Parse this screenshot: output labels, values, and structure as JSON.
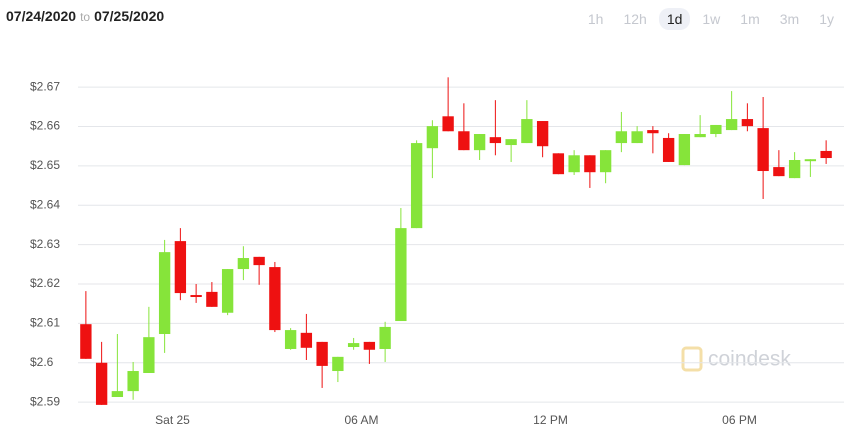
{
  "date_range": {
    "start": "07/24/2020",
    "separator": "to",
    "end": "07/25/2020"
  },
  "range_buttons": [
    "1h",
    "12h",
    "1d",
    "1w",
    "1m",
    "3m",
    "1y"
  ],
  "selected_range": "1d",
  "watermark": "coindesk",
  "chart_data": {
    "type": "candlestick",
    "categories": [
      null,
      null,
      null,
      null,
      null,
      null,
      "Sat 25",
      null,
      null,
      null,
      null,
      null,
      null,
      null,
      null,
      null,
      null,
      null,
      "06 AM",
      null,
      null,
      null,
      null,
      null,
      null,
      null,
      null,
      null,
      null,
      null,
      "12 PM",
      null,
      null,
      null,
      null,
      null,
      null,
      null,
      null,
      null,
      null,
      null,
      "06 PM",
      null,
      null,
      null,
      null,
      null
    ],
    "open": [
      2.6098,
      2.6,
      2.5913,
      2.5928,
      2.5974,
      2.6073,
      2.6309,
      2.6172,
      2.618,
      2.6127,
      2.6238,
      2.6269,
      2.6243,
      2.6035,
      2.6076,
      2.6053,
      2.5979,
      2.604,
      2.6053,
      2.6035,
      2.6106,
      2.6342,
      2.6545,
      2.6626,
      2.6588,
      2.654,
      2.6573,
      2.6553,
      2.6558,
      2.6614,
      2.6532,
      2.6484,
      2.6527,
      2.6484,
      2.6558,
      2.6558,
      2.6591,
      2.6571,
      2.6502,
      2.6573,
      2.6581,
      2.6591,
      2.6619,
      2.6596,
      2.6497,
      2.6469,
      2.6512,
      2.6538
    ],
    "high": [
      2.6182,
      2.6053,
      2.6073,
      2.6002,
      2.6142,
      2.6312,
      2.6342,
      2.62,
      2.6205,
      2.6238,
      2.6296,
      2.6269,
      2.6256,
      2.6088,
      2.6124,
      2.6053,
      2.6015,
      2.6063,
      2.6053,
      2.6104,
      2.6393,
      2.6565,
      2.6616,
      2.6725,
      2.6659,
      2.6581,
      2.6667,
      2.6568,
      2.6667,
      2.6614,
      2.6532,
      2.654,
      2.6527,
      2.654,
      2.6637,
      2.6601,
      2.6601,
      2.6583,
      2.6581,
      2.6629,
      2.6604,
      2.669,
      2.6659,
      2.6675,
      2.654,
      2.6535,
      2.6517,
      2.6565
    ],
    "low": [
      2.601,
      2.5893,
      2.5913,
      2.5906,
      2.5974,
      2.6025,
      2.6159,
      2.6152,
      2.6142,
      2.6121,
      2.621,
      2.6198,
      2.6078,
      2.6033,
      2.6007,
      2.5936,
      2.5951,
      2.6033,
      2.5997,
      2.6002,
      2.6106,
      2.6342,
      2.6469,
      2.6588,
      2.654,
      2.6515,
      2.6527,
      2.651,
      2.6558,
      2.6522,
      2.6479,
      2.6477,
      2.6444,
      2.6456,
      2.6535,
      2.6558,
      2.6532,
      2.651,
      2.6502,
      2.6573,
      2.6573,
      2.6591,
      2.6588,
      2.6416,
      2.6474,
      2.6469,
      2.6472,
      2.6505
    ],
    "close": [
      2.601,
      2.5893,
      2.5928,
      2.5979,
      2.6065,
      2.6281,
      2.6177,
      2.6167,
      2.6142,
      2.6238,
      2.6266,
      2.6248,
      2.6083,
      2.6083,
      2.6038,
      2.5992,
      2.6015,
      2.605,
      2.6033,
      2.6091,
      2.6342,
      2.6558,
      2.6601,
      2.6588,
      2.654,
      2.6581,
      2.6558,
      2.6568,
      2.6619,
      2.655,
      2.6479,
      2.6527,
      2.6484,
      2.654,
      2.6588,
      2.6588,
      2.6583,
      2.651,
      2.6581,
      2.6581,
      2.6604,
      2.6619,
      2.6601,
      2.6487,
      2.6474,
      2.6515,
      2.6517,
      2.652
    ],
    "up_color": "#86e43a",
    "down_color": "#ee1111",
    "ylim": [
      2.588,
      2.6769
    ],
    "yticks": [
      {
        "value": 2.59,
        "label": "$2.59"
      },
      {
        "value": 2.6,
        "label": "$2.6"
      },
      {
        "value": 2.61,
        "label": "$2.61"
      },
      {
        "value": 2.62,
        "label": "$2.62"
      },
      {
        "value": 2.63,
        "label": "$2.63"
      },
      {
        "value": 2.64,
        "label": "$2.64"
      },
      {
        "value": 2.65,
        "label": "$2.65"
      },
      {
        "value": 2.66,
        "label": "$2.66"
      },
      {
        "value": 2.67,
        "label": "$2.67"
      }
    ],
    "grid": true
  }
}
